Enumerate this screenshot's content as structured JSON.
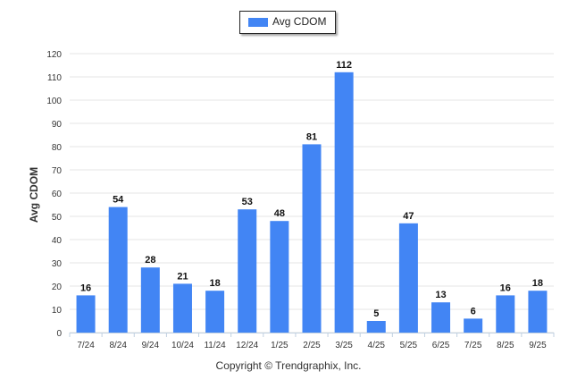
{
  "chart_data": {
    "type": "bar",
    "categories": [
      "7/24",
      "8/24",
      "9/24",
      "10/24",
      "11/24",
      "12/24",
      "1/25",
      "2/25",
      "3/25",
      "4/25",
      "5/25",
      "6/25",
      "7/25",
      "8/25",
      "9/25"
    ],
    "series": [
      {
        "name": "Avg CDOM",
        "values": [
          16,
          54,
          28,
          21,
          18,
          53,
          48,
          81,
          112,
          5,
          47,
          13,
          6,
          16,
          18
        ]
      }
    ],
    "ylabel": "Avg CDOM",
    "xlabel": "",
    "ylim": [
      0,
      120
    ],
    "yticks": [
      0,
      10,
      20,
      30,
      40,
      50,
      60,
      70,
      80,
      90,
      100,
      110,
      120
    ],
    "grid": true,
    "legend_position": "top-center",
    "bar_color": "#4285f4"
  },
  "footer": {
    "copyright": "Copyright © Trendgraphix, Inc."
  }
}
